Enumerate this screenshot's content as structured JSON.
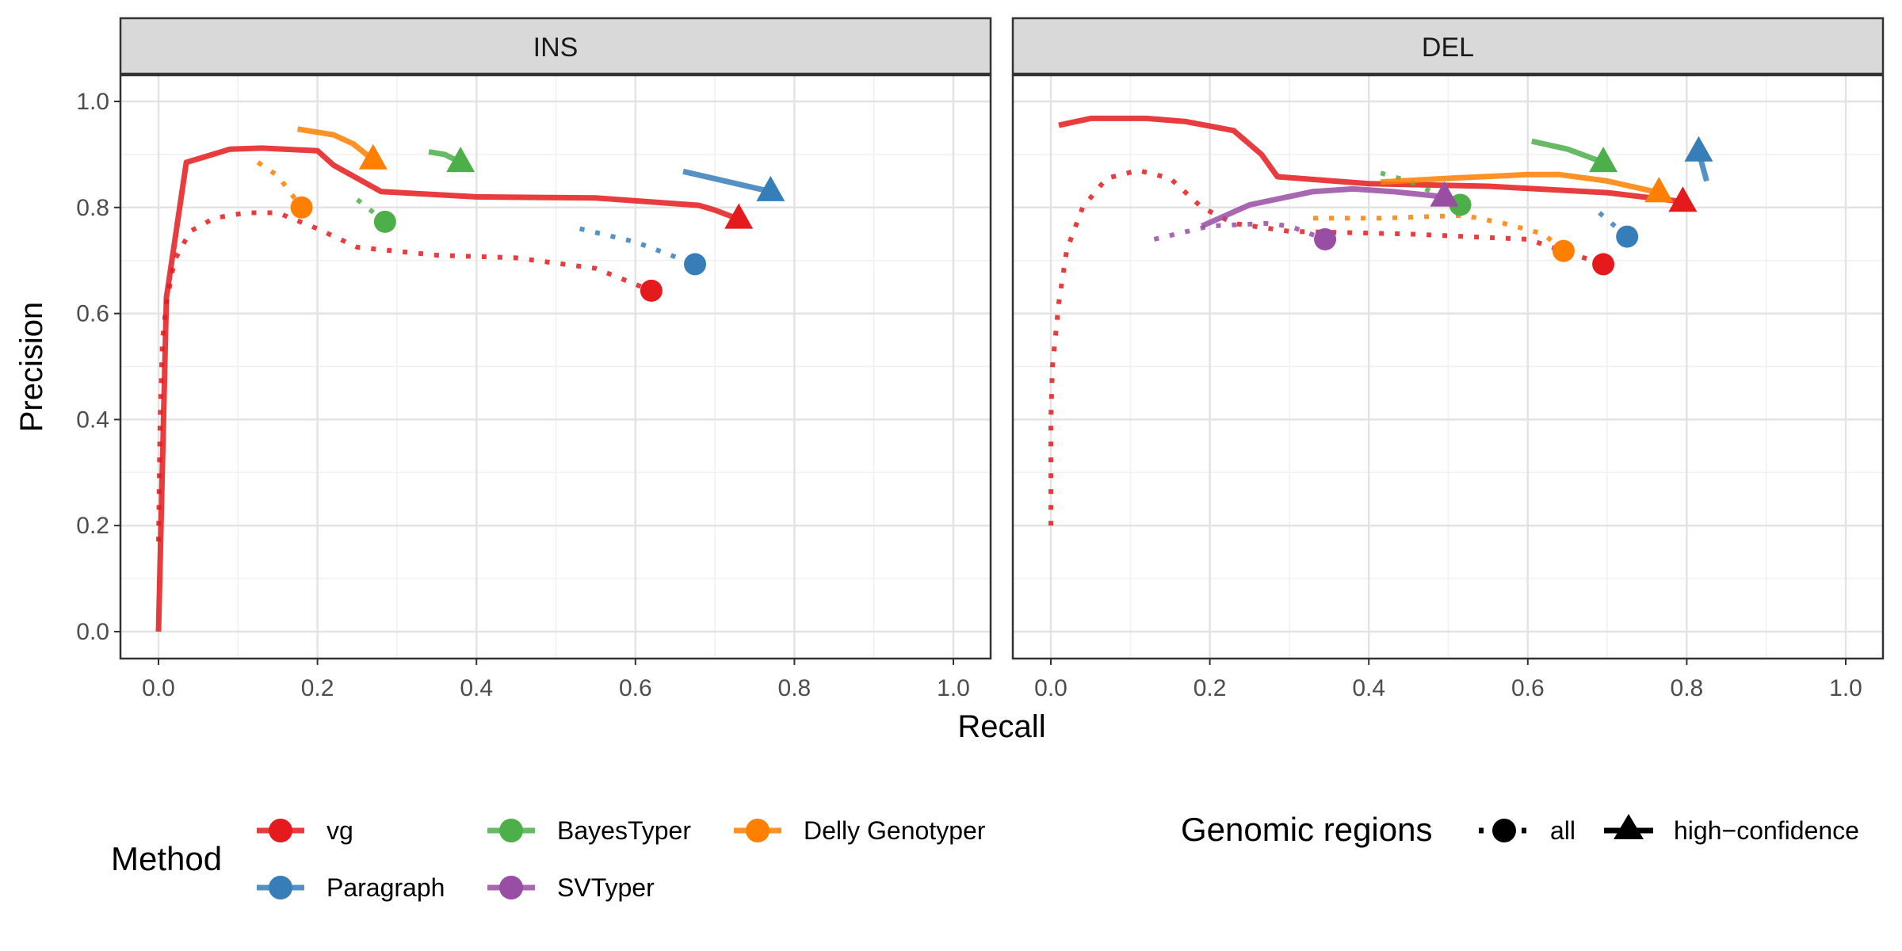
{
  "chart_data": {
    "type": "line",
    "xlabel": "Recall",
    "ylabel": "Precision",
    "xlim": [
      0,
      1
    ],
    "ylim": [
      0,
      1.05
    ],
    "x_ticks": [
      "0.0",
      "0.2",
      "0.4",
      "0.6",
      "0.8",
      "1.0"
    ],
    "y_ticks": [
      "0.0",
      "0.2",
      "0.4",
      "0.6",
      "0.8",
      "1.0"
    ],
    "grid": true,
    "legend_position": "bottom",
    "color_legend": {
      "title": "Method",
      "items": [
        {
          "name": "vg",
          "color": "#E41A1C"
        },
        {
          "name": "Paragraph",
          "color": "#377EB8"
        },
        {
          "name": "BayesTyper",
          "color": "#4DAF4A"
        },
        {
          "name": "SVTyper",
          "color": "#984EA3"
        },
        {
          "name": "Delly Genotyper",
          "color": "#FF7F00"
        }
      ]
    },
    "shape_legend": {
      "title": "Genomic regions",
      "items": [
        {
          "name": "all",
          "marker": "circle",
          "line": "dotted"
        },
        {
          "name": "high−confidence",
          "marker": "triangle",
          "line": "solid"
        }
      ]
    },
    "panels": [
      {
        "title": "INS",
        "series": [
          {
            "method": "vg",
            "region": "high-confidence",
            "x": [
              0.0,
              0.01,
              0.035,
              0.09,
              0.13,
              0.2,
              0.22,
              0.28,
              0.4,
              0.55,
              0.68,
              0.7,
              0.73
            ],
            "y": [
              0.0,
              0.63,
              0.885,
              0.91,
              0.912,
              0.907,
              0.88,
              0.83,
              0.82,
              0.818,
              0.804,
              0.795,
              0.778
            ]
          },
          {
            "method": "vg",
            "region": "all",
            "x": [
              0.0,
              0.002,
              0.005,
              0.01,
              0.02,
              0.04,
              0.07,
              0.11,
              0.15,
              0.2,
              0.25,
              0.35,
              0.45,
              0.55,
              0.62
            ],
            "y": [
              0.17,
              0.4,
              0.55,
              0.62,
              0.7,
              0.755,
              0.78,
              0.79,
              0.79,
              0.76,
              0.725,
              0.71,
              0.705,
              0.685,
              0.643
            ]
          },
          {
            "method": "Paragraph",
            "region": "high-confidence",
            "x": [
              0.66,
              0.77
            ],
            "y": [
              0.868,
              0.83
            ]
          },
          {
            "method": "Paragraph",
            "region": "all",
            "x": [
              0.53,
              0.6,
              0.675
            ],
            "y": [
              0.76,
              0.735,
              0.693
            ]
          },
          {
            "method": "BayesTyper",
            "region": "high-confidence",
            "x": [
              0.34,
              0.36,
              0.38
            ],
            "y": [
              0.905,
              0.9,
              0.885
            ]
          },
          {
            "method": "BayesTyper",
            "region": "all",
            "x": [
              0.25,
              0.285
            ],
            "y": [
              0.815,
              0.773
            ]
          },
          {
            "method": "Delly Genotyper",
            "region": "high-confidence",
            "x": [
              0.175,
              0.22,
              0.245,
              0.27
            ],
            "y": [
              0.948,
              0.937,
              0.92,
              0.89
            ]
          },
          {
            "method": "Delly Genotyper",
            "region": "all",
            "x": [
              0.125,
              0.15,
              0.18
            ],
            "y": [
              0.885,
              0.86,
              0.8
            ]
          }
        ],
        "points": [
          {
            "method": "vg",
            "region": "high-confidence",
            "x": 0.73,
            "y": 0.778
          },
          {
            "method": "vg",
            "region": "all",
            "x": 0.62,
            "y": 0.643
          },
          {
            "method": "Paragraph",
            "region": "high-confidence",
            "x": 0.77,
            "y": 0.83
          },
          {
            "method": "Paragraph",
            "region": "all",
            "x": 0.675,
            "y": 0.693
          },
          {
            "method": "BayesTyper",
            "region": "high-confidence",
            "x": 0.38,
            "y": 0.885
          },
          {
            "method": "BayesTyper",
            "region": "all",
            "x": 0.285,
            "y": 0.773
          },
          {
            "method": "Delly Genotyper",
            "region": "high-confidence",
            "x": 0.27,
            "y": 0.89
          },
          {
            "method": "Delly Genotyper",
            "region": "all",
            "x": 0.18,
            "y": 0.8
          }
        ]
      },
      {
        "title": "DEL",
        "series": [
          {
            "method": "vg",
            "region": "high-confidence",
            "x": [
              0.01,
              0.05,
              0.12,
              0.17,
              0.23,
              0.265,
              0.285,
              0.4,
              0.55,
              0.7,
              0.8
            ],
            "y": [
              0.955,
              0.968,
              0.968,
              0.962,
              0.945,
              0.9,
              0.858,
              0.845,
              0.84,
              0.828,
              0.81
            ]
          },
          {
            "method": "vg",
            "region": "all",
            "x": [
              0.0,
              0.0,
              0.002,
              0.01,
              0.02,
              0.04,
              0.07,
              0.11,
              0.15,
              0.19,
              0.23,
              0.3,
              0.45,
              0.6,
              0.695
            ],
            "y": [
              0.2,
              0.4,
              0.5,
              0.62,
              0.72,
              0.8,
              0.855,
              0.87,
              0.855,
              0.8,
              0.77,
              0.755,
              0.75,
              0.74,
              0.693
            ]
          },
          {
            "method": "Paragraph",
            "region": "high-confidence",
            "x": [
              0.825,
              0.815
            ],
            "y": [
              0.85,
              0.905
            ]
          },
          {
            "method": "Paragraph",
            "region": "all",
            "x": [
              0.69,
              0.725
            ],
            "y": [
              0.79,
              0.745
            ]
          },
          {
            "method": "BayesTyper",
            "region": "high-confidence",
            "x": [
              0.605,
              0.65,
              0.695
            ],
            "y": [
              0.925,
              0.91,
              0.885
            ]
          },
          {
            "method": "BayesTyper",
            "region": "all",
            "x": [
              0.415,
              0.45,
              0.515
            ],
            "y": [
              0.865,
              0.85,
              0.805
            ]
          },
          {
            "method": "SVTyper",
            "region": "high-confidence",
            "x": [
              0.19,
              0.25,
              0.33,
              0.38,
              0.43,
              0.495
            ],
            "y": [
              0.765,
              0.805,
              0.83,
              0.835,
              0.83,
              0.82
            ]
          },
          {
            "method": "SVTyper",
            "region": "all",
            "x": [
              0.13,
              0.2,
              0.27,
              0.3,
              0.345
            ],
            "y": [
              0.74,
              0.765,
              0.77,
              0.765,
              0.74
            ]
          },
          {
            "method": "Delly Genotyper",
            "region": "high-confidence",
            "x": [
              0.415,
              0.5,
              0.6,
              0.64,
              0.7,
              0.765
            ],
            "y": [
              0.848,
              0.855,
              0.862,
              0.862,
              0.85,
              0.828
            ]
          },
          {
            "method": "Delly Genotyper",
            "region": "all",
            "x": [
              0.33,
              0.42,
              0.52,
              0.57,
              0.62,
              0.645
            ],
            "y": [
              0.78,
              0.78,
              0.785,
              0.77,
              0.75,
              0.718
            ]
          }
        ],
        "points": [
          {
            "method": "vg",
            "region": "high-confidence",
            "x": 0.795,
            "y": 0.81
          },
          {
            "method": "vg",
            "region": "all",
            "x": 0.695,
            "y": 0.693
          },
          {
            "method": "Paragraph",
            "region": "high-confidence",
            "x": 0.815,
            "y": 0.905
          },
          {
            "method": "Paragraph",
            "region": "all",
            "x": 0.725,
            "y": 0.745
          },
          {
            "method": "BayesTyper",
            "region": "high-confidence",
            "x": 0.695,
            "y": 0.885
          },
          {
            "method": "BayesTyper",
            "region": "all",
            "x": 0.515,
            "y": 0.805
          },
          {
            "method": "SVTyper",
            "region": "high-confidence",
            "x": 0.495,
            "y": 0.82
          },
          {
            "method": "SVTyper",
            "region": "all",
            "x": 0.345,
            "y": 0.74
          },
          {
            "method": "Delly Genotyper",
            "region": "high-confidence",
            "x": 0.765,
            "y": 0.828
          },
          {
            "method": "Delly Genotyper",
            "region": "all",
            "x": 0.645,
            "y": 0.718
          }
        ]
      }
    ]
  }
}
